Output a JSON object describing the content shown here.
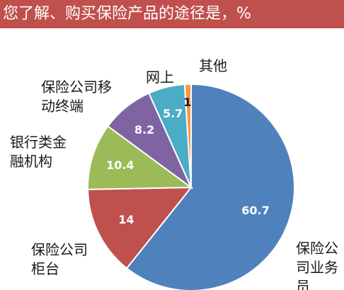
{
  "chart_data": {
    "type": "pie",
    "title": "您了解、购买保险产品的途径是，%",
    "slices": [
      {
        "label_lines": [
          "保险公",
          "司业务",
          "员"
        ],
        "value": 60.7,
        "value_label": "60.7",
        "color": "#4f81bd"
      },
      {
        "label_lines": [
          "保险公司",
          "柜台"
        ],
        "value": 14,
        "value_label": "14",
        "color": "#c0504d"
      },
      {
        "label_lines": [
          "银行类金",
          "融机构"
        ],
        "value": 10.4,
        "value_label": "10.4",
        "color": "#9bbb59"
      },
      {
        "label_lines": [
          "保险公司移",
          "动终端"
        ],
        "value": 8.2,
        "value_label": "8.2",
        "color": "#8064a2"
      },
      {
        "label_lines": [
          "网上"
        ],
        "value": 5.7,
        "value_label": "5.7",
        "color": "#4bacc6"
      },
      {
        "label_lines": [
          "其他"
        ],
        "value": 1,
        "value_label": "1",
        "color": "#f79646"
      }
    ]
  }
}
